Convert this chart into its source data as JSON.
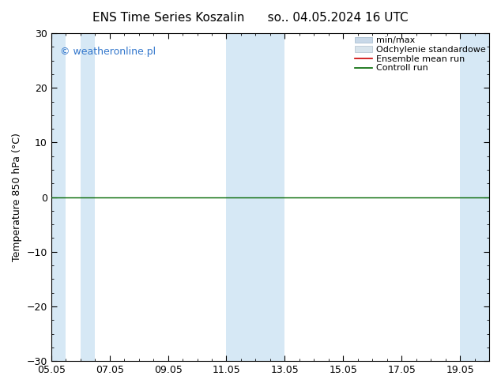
{
  "title_left": "ENS Time Series Koszalin",
  "title_right": "so.. 04.05.2024 16 UTC",
  "ylabel": "Temperature 850 hPa (°C)",
  "ylim": [
    -30,
    30
  ],
  "yticks": [
    -30,
    -20,
    -10,
    0,
    10,
    20,
    30
  ],
  "xtick_labels": [
    "05.05",
    "07.05",
    "09.05",
    "11.05",
    "13.05",
    "15.05",
    "17.05",
    "19.05"
  ],
  "xtick_positions": [
    0,
    2,
    4,
    6,
    8,
    10,
    12,
    14
  ],
  "background_color": "#ffffff",
  "plot_bg_color": "#ffffff",
  "band_color": "#d6e8f5",
  "band_positions": [
    [
      0,
      0.5
    ],
    [
      1,
      1.5
    ],
    [
      6,
      8
    ],
    [
      14,
      15
    ]
  ],
  "minmax_color": "#c8d8e8",
  "std_color": "#d8e4ec",
  "ensemble_mean_color": "#cc0000",
  "control_run_color": "#006600",
  "watermark_text": "© weatheronline.pl",
  "watermark_color": "#3377cc",
  "zero_line_color": "#006600",
  "legend_labels": [
    "min/max",
    "Odchylenie standardowe",
    "Ensemble mean run",
    "Controll run"
  ],
  "title_fontsize": 11,
  "axis_fontsize": 9,
  "tick_fontsize": 9,
  "legend_fontsize": 8
}
